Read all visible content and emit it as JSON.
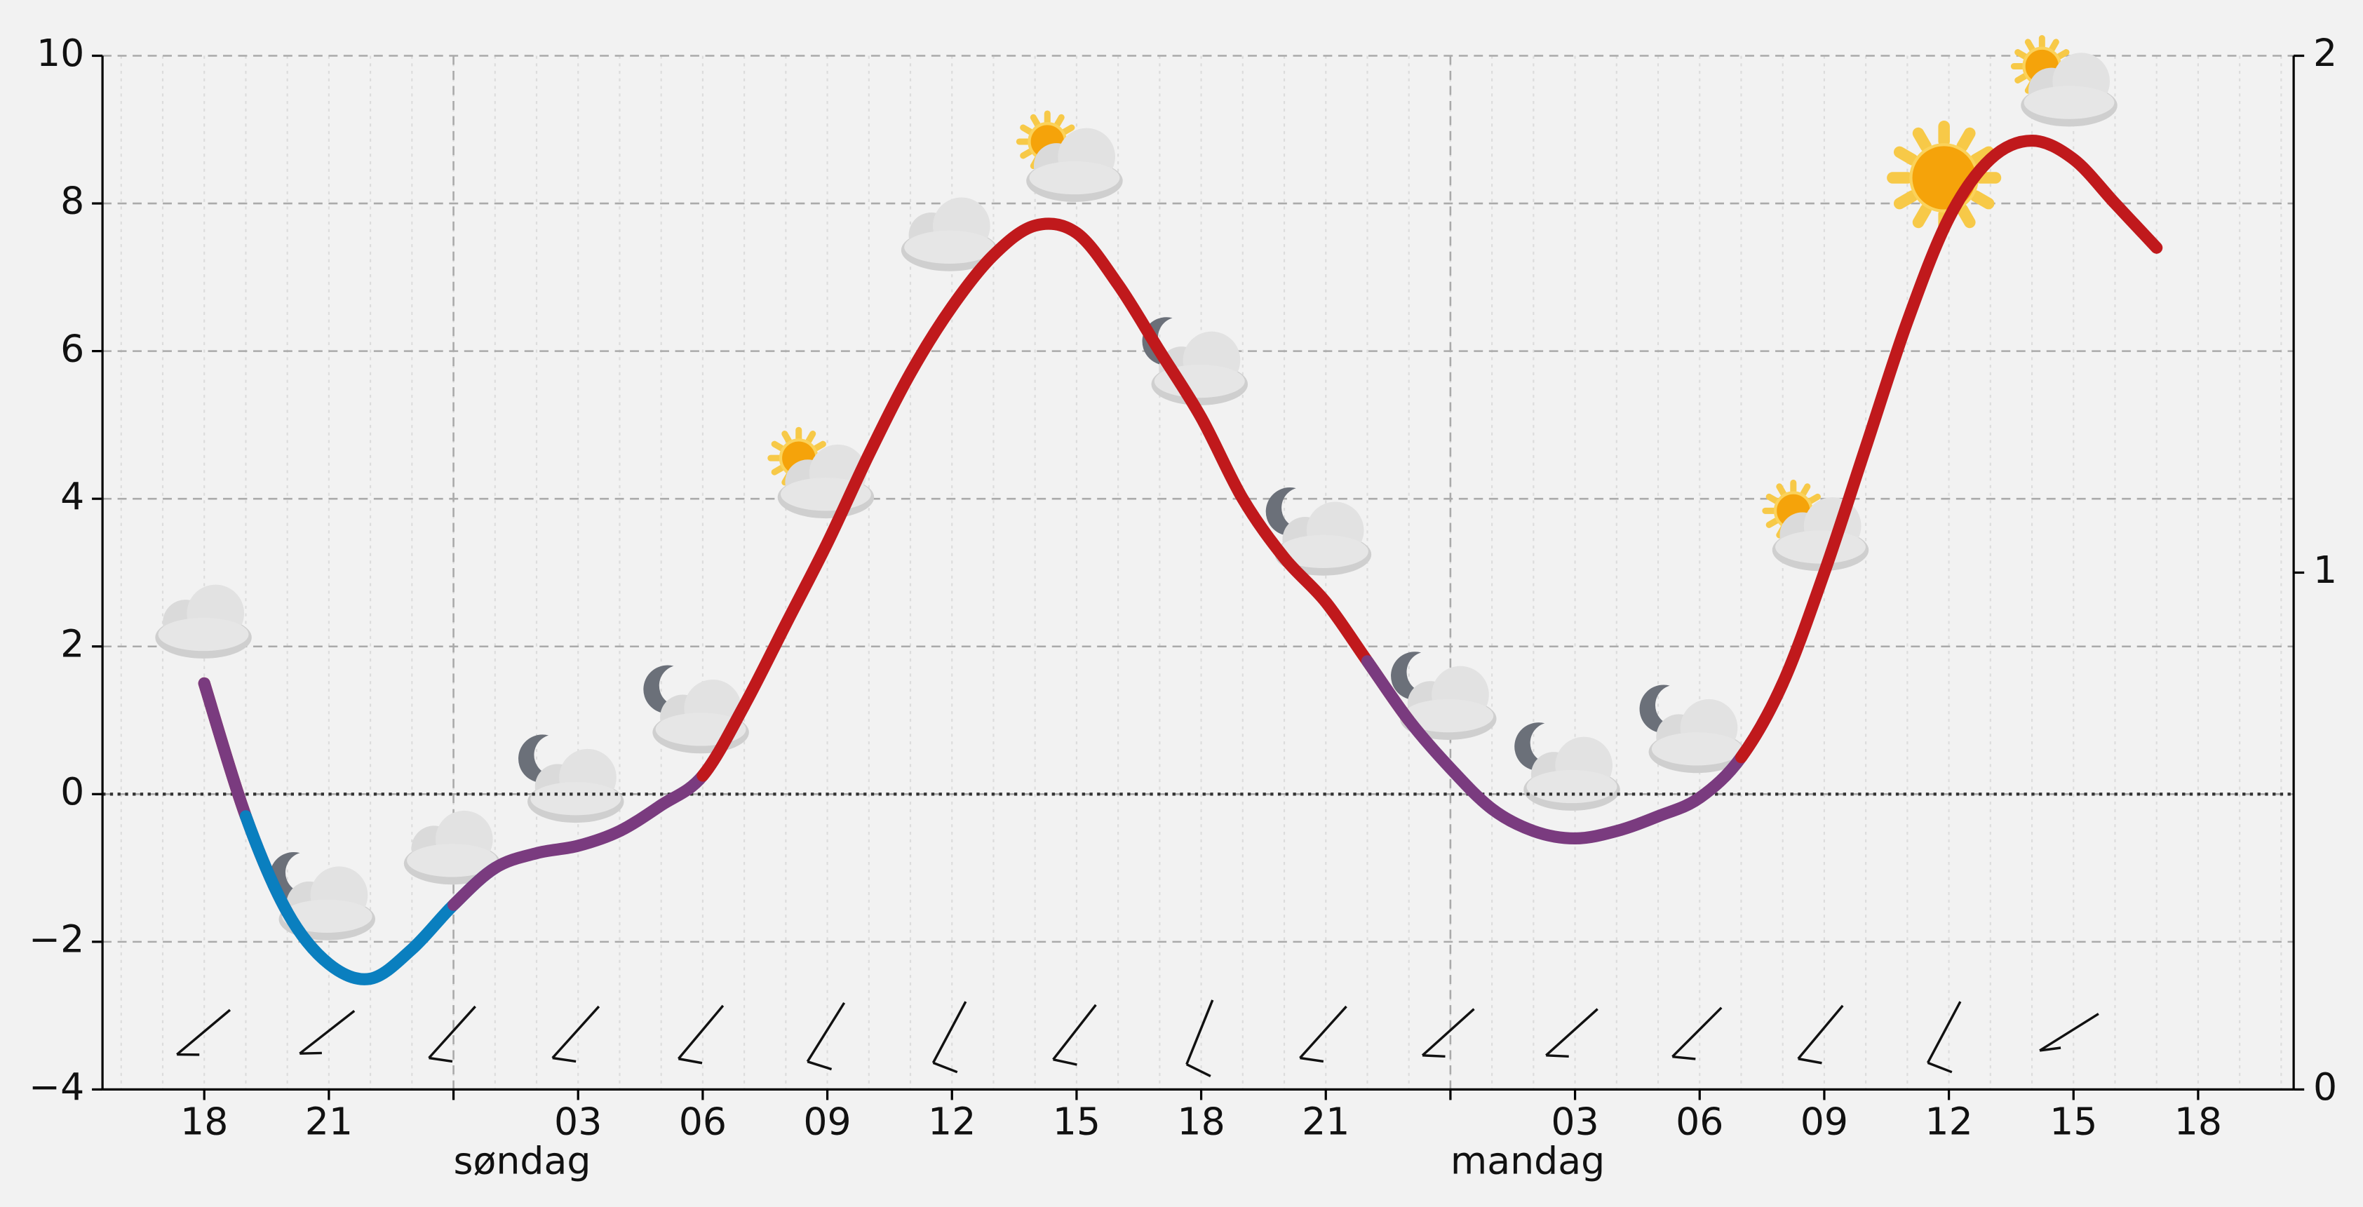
{
  "chart_data": {
    "type": "line",
    "x": [
      18,
      19,
      20,
      21,
      22,
      23,
      24,
      25,
      26,
      27,
      28,
      29,
      30,
      31,
      32,
      33,
      34,
      35,
      36,
      37,
      38,
      39,
      40,
      41,
      42,
      43,
      44,
      45,
      46,
      47,
      48,
      49,
      50,
      51,
      52,
      53,
      54,
      55,
      56,
      57,
      58,
      59,
      60,
      61,
      62,
      63,
      64,
      65
    ],
    "series": [
      {
        "values": [
          1.5,
          -0.3,
          -1.6,
          -2.3,
          -2.5,
          -2.1,
          -1.5,
          -1.0,
          -0.8,
          -0.7,
          -0.5,
          -0.15,
          0.25,
          1.2,
          2.3,
          3.4,
          4.6,
          5.7,
          6.6,
          7.3,
          7.7,
          7.6,
          6.9,
          6.0,
          5.1,
          4.0,
          3.2,
          2.6,
          1.8,
          1.0,
          0.35,
          -0.2,
          -0.5,
          -0.6,
          -0.5,
          -0.3,
          -0.05,
          0.5,
          1.5,
          3.0,
          4.7,
          6.4,
          7.8,
          8.6,
          8.85,
          8.6,
          8.0,
          7.4
        ]
      }
    ],
    "color_thresholds": [
      -1,
      1
    ],
    "colors": [
      "#0a7fbf",
      "#7a3b7f",
      "#c0191c"
    ],
    "xlim": [
      15.55,
      68.3
    ],
    "xticks": [
      {
        "value": 18,
        "label": "18"
      },
      {
        "value": 21,
        "label": "21"
      },
      {
        "value": 27,
        "label": "03"
      },
      {
        "value": 30,
        "label": "06"
      },
      {
        "value": 33,
        "label": "09"
      },
      {
        "value": 36,
        "label": "12"
      },
      {
        "value": 39,
        "label": "15"
      },
      {
        "value": 42,
        "label": "18"
      },
      {
        "value": 45,
        "label": "21"
      },
      {
        "value": 51,
        "label": "03"
      },
      {
        "value": 54,
        "label": "06"
      },
      {
        "value": 57,
        "label": "09"
      },
      {
        "value": 60,
        "label": "12"
      },
      {
        "value": 63,
        "label": "15"
      },
      {
        "value": 66,
        "label": "18"
      }
    ],
    "days": [
      {
        "value": 24,
        "label": "søndag"
      },
      {
        "value": 48,
        "label": "mandag"
      }
    ],
    "ylim": [
      -4,
      10
    ],
    "yticks": [
      {
        "value": -4,
        "label": "−4"
      },
      {
        "value": -2,
        "label": "−2"
      },
      0,
      2,
      4,
      6,
      8,
      10
    ],
    "y2lim": [
      0,
      2
    ],
    "y2ticks": [
      0,
      1,
      2
    ],
    "grid": true
  }
}
